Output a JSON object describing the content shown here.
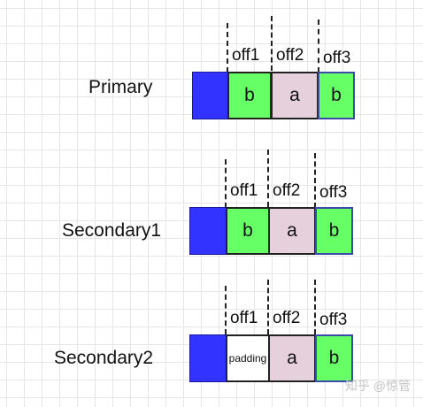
{
  "colors": {
    "header_block": "#3333ff",
    "b_cell": "#66ff66",
    "a_cell": "#e6d0dc",
    "padding_cell": "#ffffff"
  },
  "offset_labels": [
    "off1",
    "off2",
    "off3"
  ],
  "rows": [
    {
      "label": "Primary",
      "cells": [
        "b",
        "a",
        "b"
      ]
    },
    {
      "label": "Secondary1",
      "cells": [
        "b",
        "a",
        "b"
      ]
    },
    {
      "label": "Secondary2",
      "cells": [
        "padding",
        "a",
        "b"
      ]
    }
  ],
  "watermark": "知乎 @惊管"
}
